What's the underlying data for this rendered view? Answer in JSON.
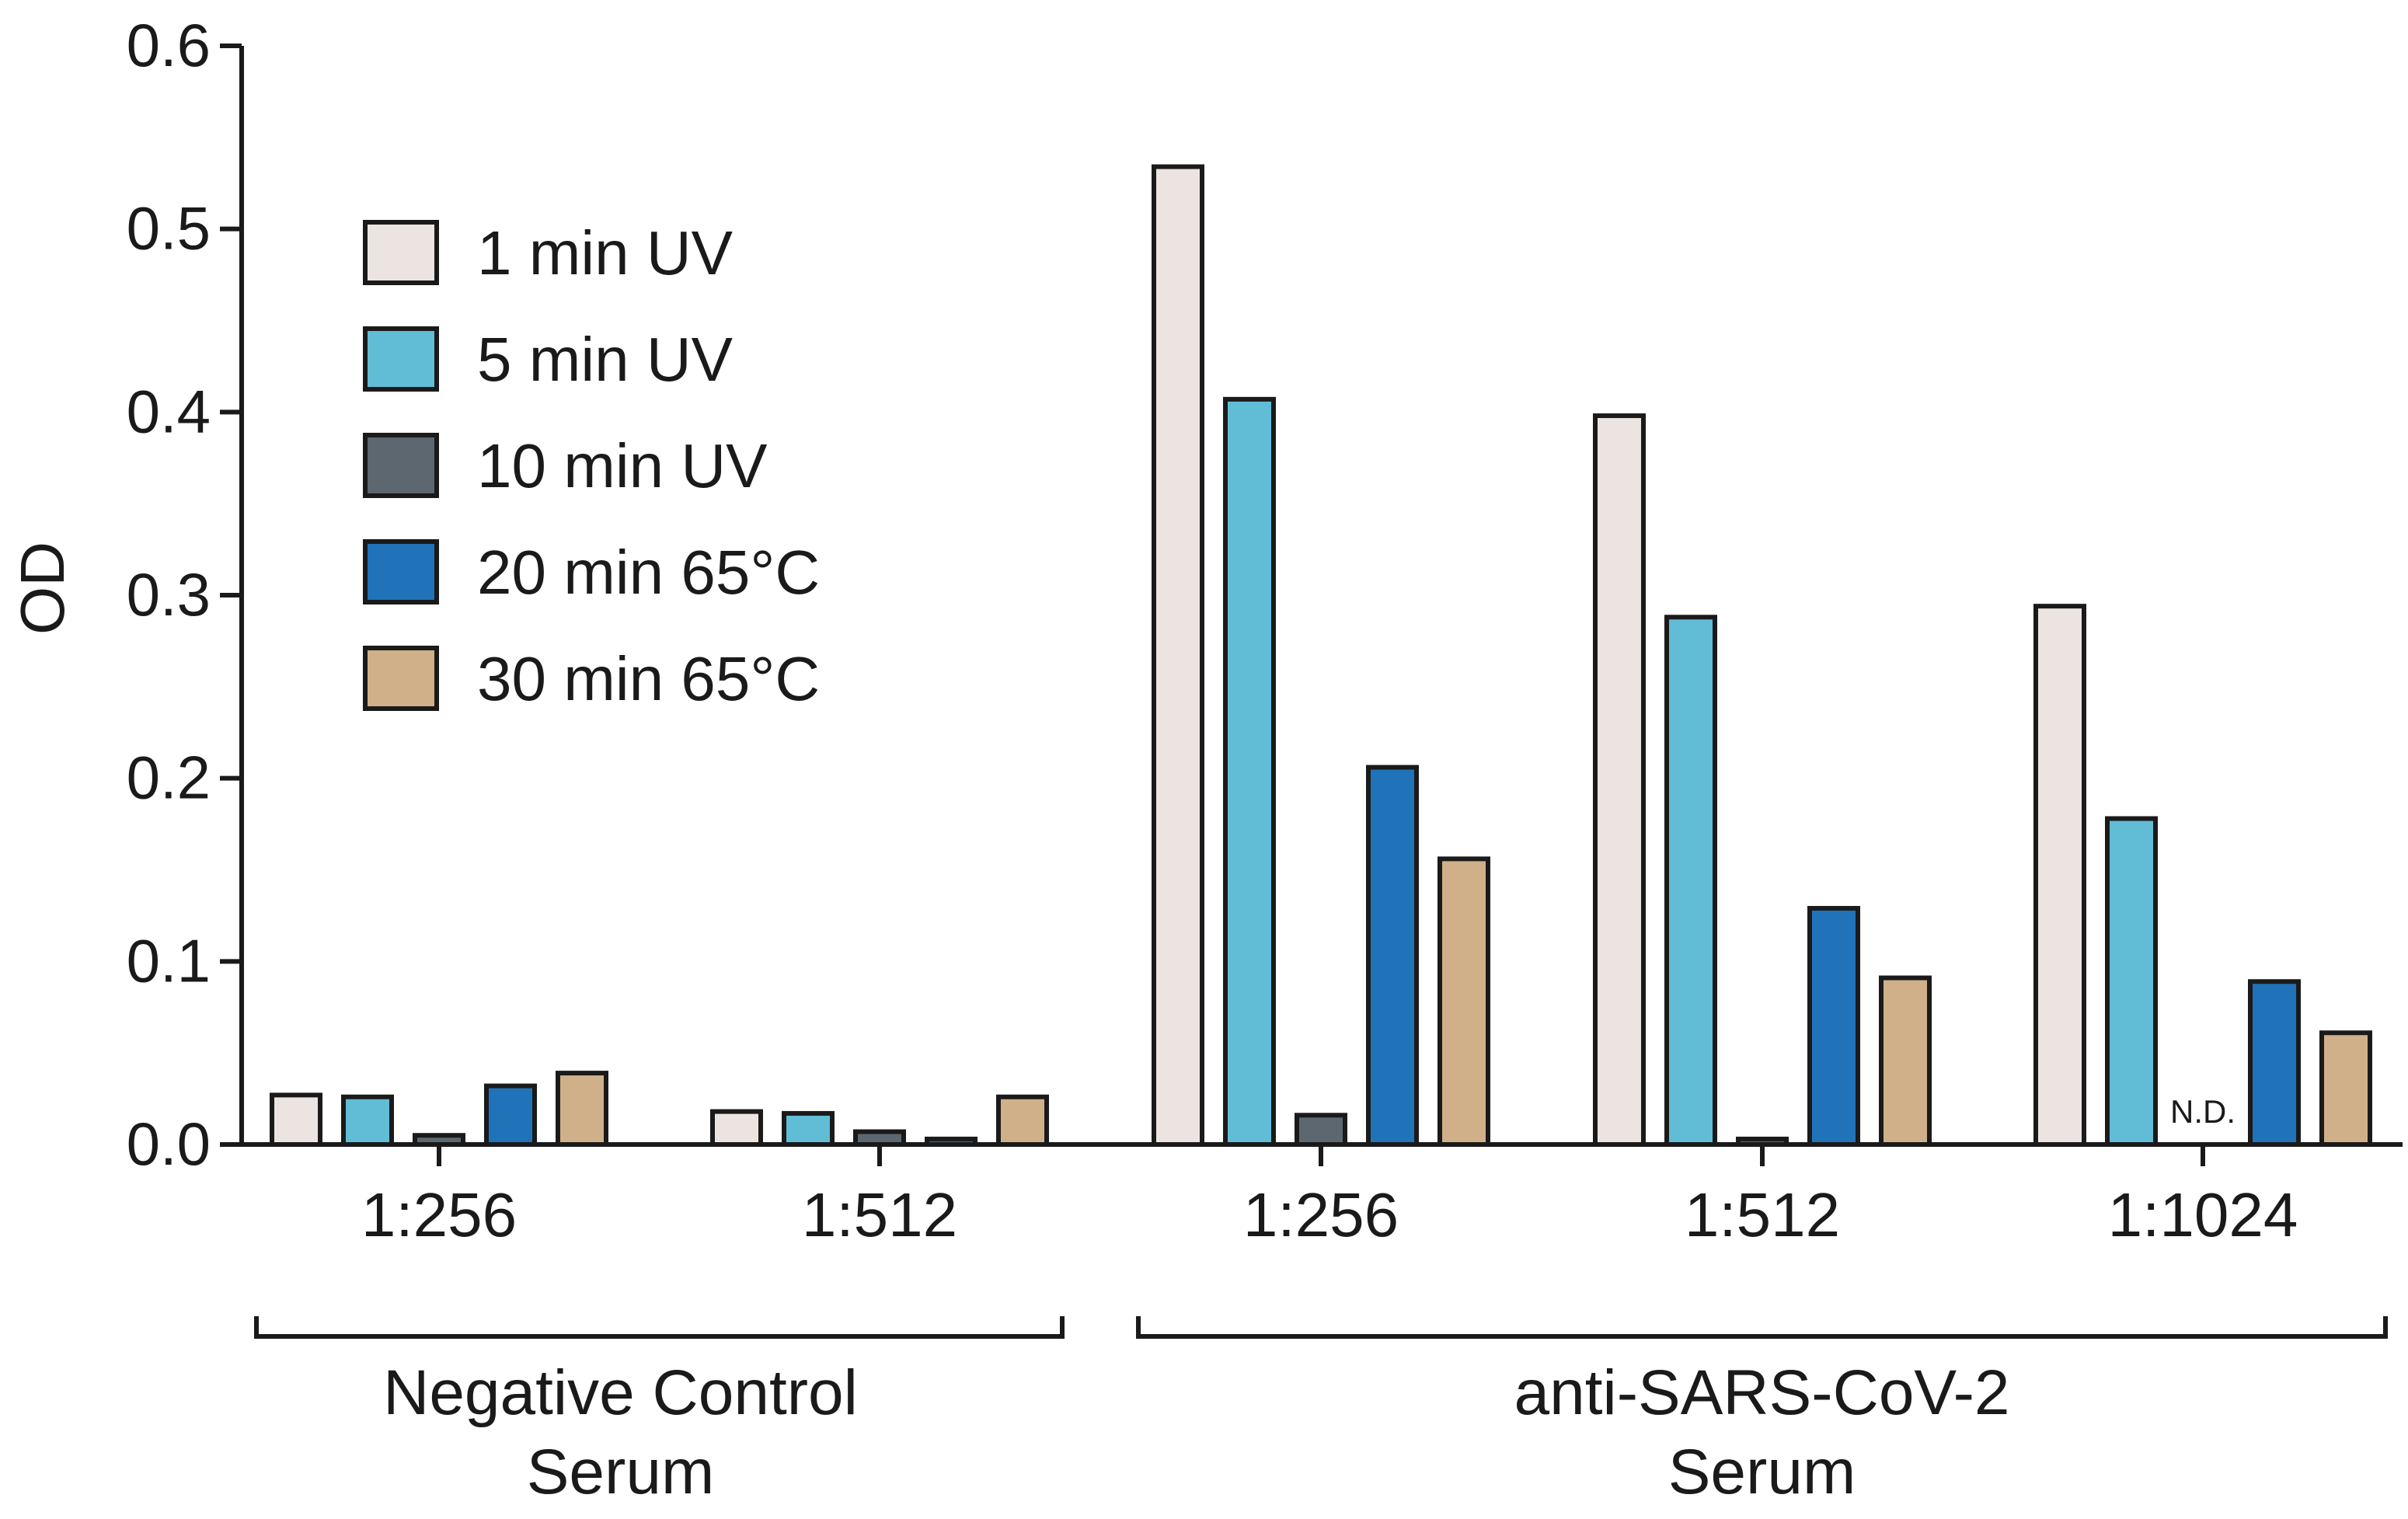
{
  "chart_data": {
    "type": "bar",
    "title": "",
    "xlabel": "",
    "ylabel": "OD",
    "ylim": [
      0,
      0.6
    ],
    "yticks": [
      "0.0",
      "0.1",
      "0.2",
      "0.3",
      "0.4",
      "0.5",
      "0.6"
    ],
    "grid": false,
    "legend_position": "top-left",
    "categories": [
      "1:256",
      "1:512",
      "1:256",
      "1:512",
      "1:1024"
    ],
    "groups": [
      {
        "label_line1": "Negative Control",
        "label_line2": "Serum",
        "categories": [
          0,
          1
        ]
      },
      {
        "label_line1": "anti-SARS-CoV-2",
        "label_line2": "Serum",
        "categories": [
          2,
          3,
          4
        ]
      }
    ],
    "series": [
      {
        "name": "1 min UV",
        "color": "#ece4e0",
        "values": [
          0.027,
          0.018,
          0.534,
          0.398,
          0.294
        ]
      },
      {
        "name": "5 min UV",
        "color": "#61bcd6",
        "values": [
          0.026,
          0.017,
          0.407,
          0.288,
          0.178
        ]
      },
      {
        "name": "10 min UV",
        "color": "#5d6770",
        "values": [
          0.005,
          0.007,
          0.016,
          0.003,
          null
        ]
      },
      {
        "name": "20 min 65°C",
        "color": "#2073b9",
        "values": [
          0.032,
          0.003,
          0.206,
          0.129,
          0.089
        ]
      },
      {
        "name": "30 min 65°C",
        "color": "#d0b088",
        "values": [
          0.039,
          0.026,
          0.156,
          0.091,
          0.061
        ]
      }
    ],
    "annotations": [
      {
        "text": "N.D.",
        "category": 4,
        "series": 2
      }
    ]
  }
}
